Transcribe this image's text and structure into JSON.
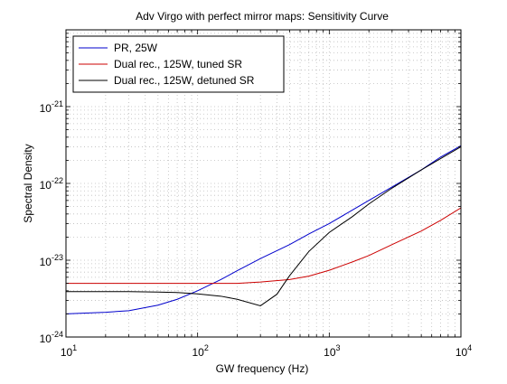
{
  "chart_data": {
    "type": "line",
    "title": "Adv Virgo with perfect mirror maps: Sensitivity Curve",
    "xlabel": "GW frequency (Hz)",
    "ylabel": "Spectral Density",
    "xscale": "log",
    "yscale": "log",
    "xlim": [
      10,
      10000
    ],
    "ylim": [
      1e-24,
      1e-20
    ],
    "grid": true,
    "legend_position": "top-left",
    "x_ticks": [
      {
        "value": 10,
        "base": "10",
        "exp": "1"
      },
      {
        "value": 100,
        "base": "10",
        "exp": "2"
      },
      {
        "value": 1000,
        "base": "10",
        "exp": "3"
      },
      {
        "value": 10000,
        "base": "10",
        "exp": "4"
      }
    ],
    "y_ticks": [
      {
        "value": 1e-24,
        "base": "10",
        "exp": "-24"
      },
      {
        "value": 1e-23,
        "base": "10",
        "exp": "-23"
      },
      {
        "value": 1e-22,
        "base": "10",
        "exp": "-22"
      },
      {
        "value": 1e-21,
        "base": "10",
        "exp": "-21"
      }
    ],
    "series": [
      {
        "name": "PR, 25W",
        "color": "#0000cc",
        "points": [
          [
            10,
            2e-24
          ],
          [
            20,
            2.1e-24
          ],
          [
            30,
            2.2e-24
          ],
          [
            50,
            2.6e-24
          ],
          [
            70,
            3.1e-24
          ],
          [
            100,
            4e-24
          ],
          [
            150,
            5.6e-24
          ],
          [
            200,
            7.3e-24
          ],
          [
            300,
            1.05e-23
          ],
          [
            500,
            1.6e-23
          ],
          [
            700,
            2.2e-23
          ],
          [
            1000,
            3e-23
          ],
          [
            1500,
            4.5e-23
          ],
          [
            2000,
            6e-23
          ],
          [
            3000,
            9e-23
          ],
          [
            5000,
            1.5e-22
          ],
          [
            7000,
            2.2e-22
          ],
          [
            10000,
            3.1e-22
          ]
        ]
      },
      {
        "name": "Dual rec., 125W, tuned SR",
        "color": "#cc0000",
        "points": [
          [
            10,
            5e-24
          ],
          [
            20,
            5e-24
          ],
          [
            50,
            5e-24
          ],
          [
            100,
            5e-24
          ],
          [
            200,
            5e-24
          ],
          [
            300,
            5.2e-24
          ],
          [
            500,
            5.6e-24
          ],
          [
            700,
            6.2e-24
          ],
          [
            1000,
            7.4e-24
          ],
          [
            1500,
            9.5e-24
          ],
          [
            2000,
            1.15e-23
          ],
          [
            3000,
            1.6e-23
          ],
          [
            5000,
            2.4e-23
          ],
          [
            7000,
            3.3e-23
          ],
          [
            10000,
            4.8e-23
          ]
        ]
      },
      {
        "name": "Dual rec., 125W, detuned SR",
        "color": "#000000",
        "points": [
          [
            10,
            3.9e-24
          ],
          [
            20,
            3.9e-24
          ],
          [
            30,
            3.9e-24
          ],
          [
            50,
            3.85e-24
          ],
          [
            70,
            3.8e-24
          ],
          [
            100,
            3.65e-24
          ],
          [
            150,
            3.4e-24
          ],
          [
            200,
            3.1e-24
          ],
          [
            300,
            2.55e-24
          ],
          [
            400,
            3.6e-24
          ],
          [
            500,
            6.3e-24
          ],
          [
            700,
            1.3e-23
          ],
          [
            1000,
            2.3e-23
          ],
          [
            1500,
            3.7e-23
          ],
          [
            2000,
            5.4e-23
          ],
          [
            3000,
            8.7e-23
          ],
          [
            5000,
            1.5e-22
          ],
          [
            7000,
            2.1e-22
          ],
          [
            10000,
            3e-22
          ]
        ]
      }
    ]
  }
}
